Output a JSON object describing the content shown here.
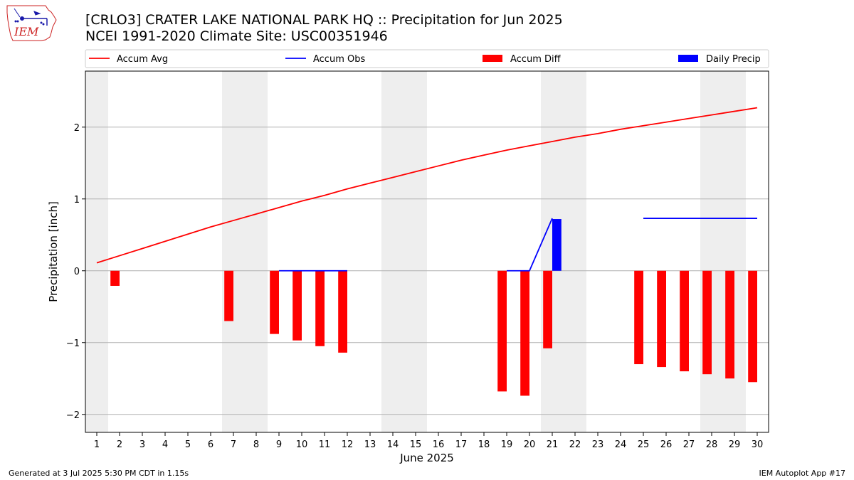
{
  "header": {
    "title_line1": "[CRLO3] CRATER LAKE NATIONAL PARK HQ :: Precipitation for Jun 2025",
    "title_line2": "NCEI 1991-2020 Climate Site: USC00351946",
    "logo_text": "IEM"
  },
  "footer": {
    "left": "Generated at 3 Jul 2025 5:30 PM CDT in 1.15s",
    "right": "IEM Autoplot App #17"
  },
  "chart_data": {
    "type": "bar",
    "xlabel": "June 2025",
    "ylabel": "Precipitation [inch]",
    "xlim": [
      0.5,
      30.5
    ],
    "ylim": [
      -2.25,
      2.78
    ],
    "y_ticks": [
      2,
      1,
      0,
      -1,
      -2
    ],
    "y_tick_labels": [
      "2",
      "1",
      "0",
      "−1",
      "−2"
    ],
    "x_ticks": [
      1,
      2,
      3,
      4,
      5,
      6,
      7,
      8,
      9,
      10,
      11,
      12,
      13,
      14,
      15,
      16,
      17,
      18,
      19,
      20,
      21,
      22,
      23,
      24,
      25,
      26,
      27,
      28,
      29,
      30
    ],
    "grid": "horizontal",
    "weekend_bands": [
      [
        0.5,
        1.5
      ],
      [
        6.5,
        8.5
      ],
      [
        13.5,
        15.5
      ],
      [
        20.5,
        22.5
      ],
      [
        27.5,
        29.5
      ]
    ],
    "legend": {
      "placement": "top",
      "entries": [
        {
          "label": "Accum Avg",
          "type": "line",
          "color": "#ff0000"
        },
        {
          "label": "Accum Obs",
          "type": "line",
          "color": "#0000ff"
        },
        {
          "label": "Accum Diff",
          "type": "bar",
          "color": "#ff0000"
        },
        {
          "label": "Daily Precip",
          "type": "bar",
          "color": "#0000ff"
        }
      ]
    },
    "series": [
      {
        "name": "Accum Avg",
        "type": "line",
        "color": "#ff0000",
        "x": [
          1,
          2,
          3,
          4,
          5,
          6,
          7,
          8,
          9,
          10,
          11,
          12,
          13,
          14,
          15,
          16,
          17,
          18,
          19,
          20,
          21,
          22,
          23,
          24,
          25,
          26,
          27,
          28,
          29,
          30
        ],
        "values": [
          0.11,
          0.21,
          0.31,
          0.41,
          0.51,
          0.61,
          0.7,
          0.79,
          0.88,
          0.97,
          1.05,
          1.14,
          1.22,
          1.3,
          1.38,
          1.46,
          1.54,
          1.61,
          1.68,
          1.74,
          1.8,
          1.86,
          1.91,
          1.97,
          2.02,
          2.07,
          2.12,
          2.17,
          2.22,
          2.27
        ]
      },
      {
        "name": "Accum Obs",
        "type": "line",
        "color": "#0000ff",
        "segments": [
          {
            "x": [
              9,
              10,
              11,
              12
            ],
            "values": [
              0,
              0,
              0,
              0
            ]
          },
          {
            "x": [
              19,
              20,
              21
            ],
            "values": [
              0,
              0,
              0.73
            ]
          },
          {
            "x": [
              25,
              26,
              27,
              28,
              29,
              30
            ],
            "values": [
              0.73,
              0.73,
              0.73,
              0.73,
              0.73,
              0.73
            ]
          }
        ]
      },
      {
        "name": "Accum Diff",
        "type": "bar",
        "color": "#ff0000",
        "x": [
          2,
          7,
          9,
          10,
          11,
          12,
          19,
          20,
          21,
          25,
          26,
          27,
          28,
          29,
          30
        ],
        "values": [
          -0.21,
          -0.7,
          -0.88,
          -0.97,
          -1.05,
          -1.14,
          -1.68,
          -1.74,
          -1.08,
          -1.3,
          -1.34,
          -1.4,
          -1.44,
          -1.5,
          -1.55
        ]
      },
      {
        "name": "Daily Precip",
        "type": "bar",
        "color": "#0000ff",
        "x": [
          21
        ],
        "values": [
          0.72
        ]
      }
    ]
  }
}
